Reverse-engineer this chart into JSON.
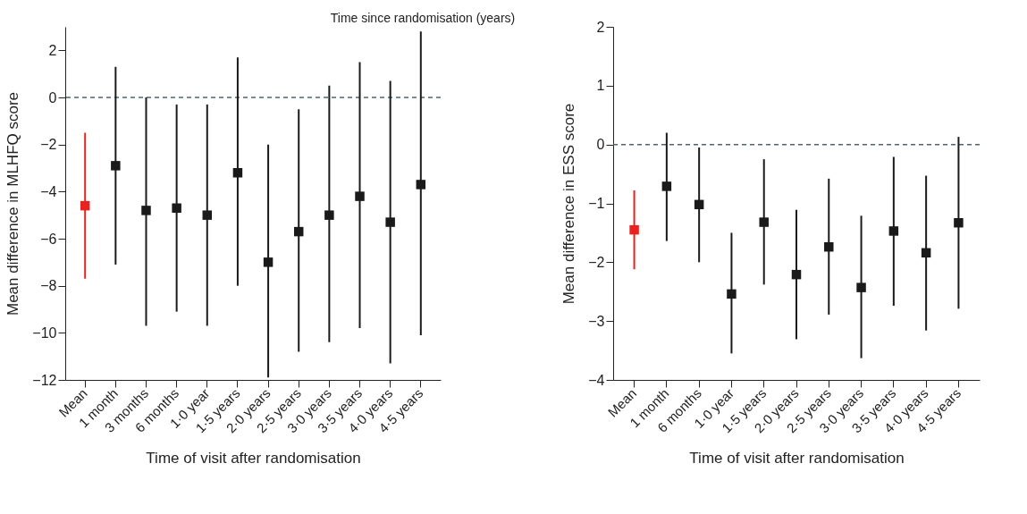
{
  "chart_data": [
    {
      "type": "scatter",
      "annotations": [
        "Time since randomisation (years)"
      ],
      "xlabel": "Time of visit after randomisation",
      "ylabel": "Mean difference in MLHFQ score",
      "categories": [
        "Mean",
        "1 month",
        "3 months",
        "6 months",
        "1·0 year",
        "1·5 years",
        "2·0 years",
        "2·5 years",
        "3·0 years",
        "3·5 years",
        "4·0 years",
        "4·5 years"
      ],
      "values": [
        -4.6,
        -2.9,
        -4.8,
        -4.7,
        -5.0,
        -3.2,
        -7.0,
        -5.7,
        -5.0,
        -4.2,
        -5.3,
        -3.7
      ],
      "errors": [
        [
          -7.7,
          -1.5
        ],
        [
          -7.1,
          1.3
        ],
        [
          -9.7,
          0.0
        ],
        [
          -9.1,
          -0.3
        ],
        [
          -9.7,
          -0.3
        ],
        [
          -8.0,
          1.7
        ],
        [
          -11.9,
          -2.0
        ],
        [
          -10.8,
          -0.5
        ],
        [
          -10.4,
          0.5
        ],
        [
          -9.8,
          1.5
        ],
        [
          -11.3,
          0.7
        ],
        [
          -10.1,
          2.8
        ]
      ],
      "colors": [
        "#e8231f",
        "#1a1a1a",
        "#1a1a1a",
        "#1a1a1a",
        "#1a1a1a",
        "#1a1a1a",
        "#1a1a1a",
        "#1a1a1a",
        "#1a1a1a",
        "#1a1a1a",
        "#1a1a1a",
        "#1a1a1a"
      ],
      "marker": "square",
      "grid": false,
      "ylim": [
        -12,
        3
      ],
      "yticks": [
        -12,
        -10,
        -8,
        -6,
        -4,
        -2,
        0,
        2
      ],
      "ref_lines": [
        {
          "axis": "y",
          "value": 0,
          "color": "#4f6470",
          "line_style": "dashed"
        }
      ]
    },
    {
      "type": "scatter",
      "xlabel": "Time of visit after randomisation",
      "ylabel": "Mean difference in ESS score",
      "categories": [
        "Mean",
        "1 month",
        "6 months",
        "1·0 year",
        "1·5 years",
        "2·0 years",
        "2·5 years",
        "3·0 years",
        "3·5 years",
        "4·0 years",
        "4·5 years"
      ],
      "values": [
        -1.45,
        -0.71,
        -1.02,
        -2.54,
        -1.32,
        -2.21,
        -1.74,
        -2.43,
        -1.47,
        -1.84,
        -1.33
      ],
      "errors": [
        [
          -2.12,
          -0.78
        ],
        [
          -1.64,
          0.2
        ],
        [
          -2.0,
          -0.05
        ],
        [
          -3.55,
          -1.5
        ],
        [
          -2.38,
          -0.25
        ],
        [
          -3.31,
          -1.11
        ],
        [
          -2.89,
          -0.58
        ],
        [
          -3.63,
          -1.21
        ],
        [
          -2.74,
          -0.21
        ],
        [
          -3.16,
          -0.53
        ],
        [
          -2.79,
          0.13
        ]
      ],
      "colors": [
        "#e8231f",
        "#1a1a1a",
        "#1a1a1a",
        "#1a1a1a",
        "#1a1a1a",
        "#1a1a1a",
        "#1a1a1a",
        "#1a1a1a",
        "#1a1a1a",
        "#1a1a1a",
        "#1a1a1a"
      ],
      "marker": "square",
      "grid": false,
      "ylim": [
        -4,
        2
      ],
      "yticks": [
        -4,
        -3,
        -2,
        -1,
        0,
        1,
        2
      ],
      "ref_lines": [
        {
          "axis": "y",
          "value": 0,
          "color": "#4f6470",
          "line_style": "dashed"
        }
      ]
    }
  ]
}
